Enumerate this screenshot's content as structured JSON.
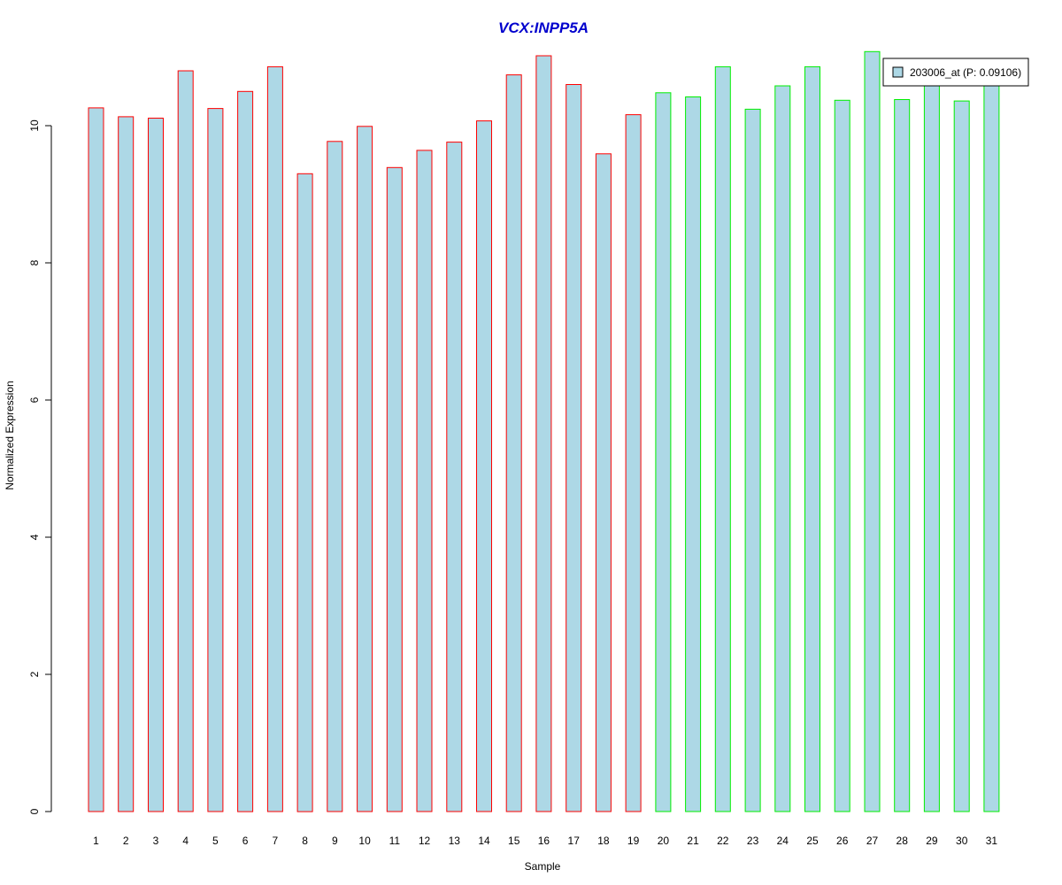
{
  "chart_data": {
    "type": "bar",
    "title": "VCX:INPP5A",
    "xlabel": "Sample",
    "ylabel": "Normalized Expression",
    "categories": [
      "1",
      "2",
      "3",
      "4",
      "5",
      "6",
      "7",
      "8",
      "9",
      "10",
      "11",
      "12",
      "13",
      "14",
      "15",
      "16",
      "17",
      "18",
      "19",
      "20",
      "21",
      "22",
      "23",
      "24",
      "25",
      "26",
      "27",
      "28",
      "29",
      "30",
      "31"
    ],
    "series": [
      {
        "name": "203006_at (P: 0.09106)",
        "values": [
          10.26,
          10.13,
          10.11,
          10.8,
          10.25,
          10.5,
          10.86,
          9.3,
          9.77,
          9.99,
          9.39,
          9.64,
          9.76,
          10.07,
          10.74,
          11.02,
          10.6,
          9.59,
          10.16,
          10.48,
          10.42,
          10.86,
          10.24,
          10.58,
          10.86,
          10.37,
          11.08,
          10.38,
          10.67,
          10.36,
          10.74
        ]
      }
    ],
    "group_border_colors": [
      "#ff0000",
      "#ff0000",
      "#ff0000",
      "#ff0000",
      "#ff0000",
      "#ff0000",
      "#ff0000",
      "#ff0000",
      "#ff0000",
      "#ff0000",
      "#ff0000",
      "#ff0000",
      "#ff0000",
      "#ff0000",
      "#ff0000",
      "#ff0000",
      "#ff0000",
      "#ff0000",
      "#ff0000",
      "#00ee00",
      "#00ee00",
      "#00ee00",
      "#00ee00",
      "#00ee00",
      "#00ee00",
      "#00ee00",
      "#00ee00",
      "#00ee00",
      "#00ee00",
      "#00ee00",
      "#00ee00"
    ],
    "bar_fill": "#add8e6",
    "title_color": "#0000cd",
    "yticks": [
      0,
      2,
      4,
      6,
      8,
      10
    ],
    "ylim": [
      0,
      11.08
    ],
    "grid": false,
    "legend_position": "top-right"
  }
}
